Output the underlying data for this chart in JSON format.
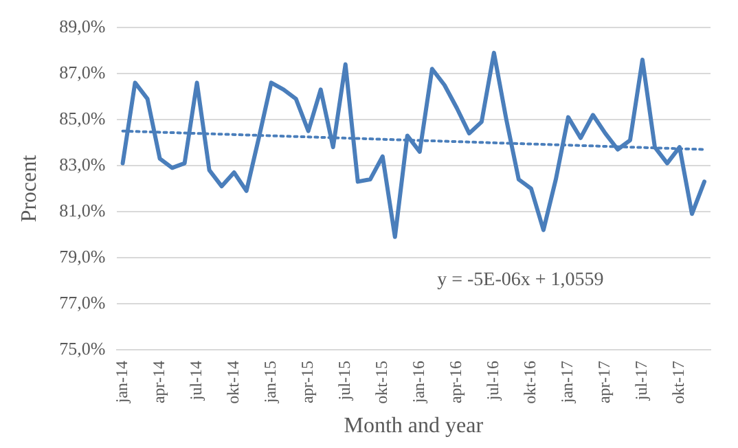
{
  "chart_data": {
    "type": "line",
    "xlabel": "Month and year",
    "ylabel": "Procent",
    "categories": [
      "jan-14",
      null,
      null,
      "apr-14",
      null,
      null,
      "jul-14",
      null,
      null,
      "okt-14",
      null,
      null,
      "jan-15",
      null,
      null,
      "apr-15",
      null,
      null,
      "jul-15",
      null,
      null,
      "okt-15",
      null,
      null,
      "jan-16",
      null,
      null,
      "apr-16",
      null,
      null,
      "jul-16",
      null,
      null,
      "okt-16",
      null,
      null,
      "jan-17",
      null,
      null,
      "apr-17",
      null,
      null,
      "jul-17",
      null,
      null,
      "okt-17",
      null,
      null
    ],
    "series": [
      {
        "color": "#4a7ebb",
        "line_style": "solid",
        "values": [
          83.1,
          86.6,
          85.9,
          83.3,
          82.9,
          83.1,
          86.6,
          82.8,
          82.1,
          82.7,
          81.9,
          84.2,
          86.6,
          86.3,
          85.9,
          84.5,
          86.3,
          83.8,
          87.4,
          82.3,
          82.4,
          83.4,
          79.9,
          84.3,
          83.6,
          87.2,
          86.5,
          85.5,
          84.4,
          84.9,
          87.9,
          85.0,
          82.4,
          82.0,
          80.2,
          82.4,
          85.1,
          84.2,
          85.2,
          84.4,
          83.7,
          84.1,
          87.6,
          83.8,
          83.1,
          83.8,
          80.9,
          82.3
        ]
      },
      {
        "type": "line",
        "color": "#4a7ebb",
        "line_style": "dotted",
        "values": [
          84.5,
          null,
          null,
          null,
          null,
          null,
          null,
          null,
          null,
          null,
          null,
          null,
          null,
          null,
          null,
          null,
          null,
          null,
          null,
          null,
          null,
          null,
          null,
          null,
          null,
          null,
          null,
          null,
          null,
          null,
          null,
          null,
          null,
          null,
          null,
          null,
          null,
          null,
          null,
          null,
          null,
          null,
          null,
          null,
          null,
          null,
          null,
          83.7
        ]
      }
    ],
    "ylim": [
      75,
      89
    ],
    "yticks": [
      {
        "value": 75,
        "label": "75,0%"
      },
      {
        "value": 77,
        "label": "77,0%"
      },
      {
        "value": 79,
        "label": "79,0%"
      },
      {
        "value": 81,
        "label": "81,0%"
      },
      {
        "value": 83,
        "label": "83,0%"
      },
      {
        "value": 85,
        "label": "85,0%"
      },
      {
        "value": 87,
        "label": "87,0%"
      },
      {
        "value": 89,
        "label": "89,0%"
      }
    ],
    "grid": "y",
    "legend": false,
    "marker": "none",
    "annotations": [
      "y = -5E-06x + 1,0559"
    ]
  }
}
